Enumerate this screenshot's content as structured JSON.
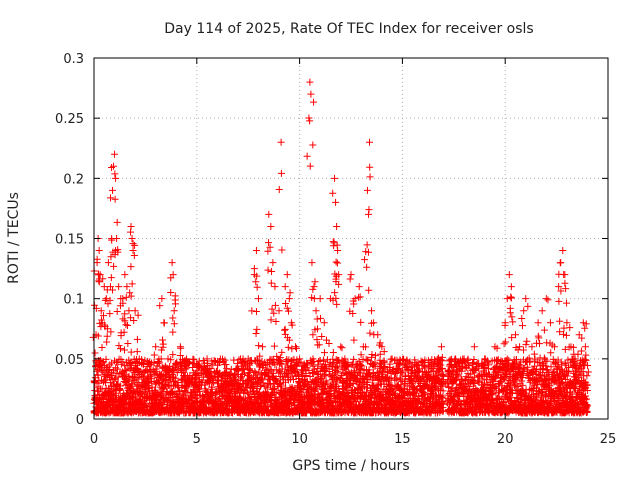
{
  "chart_data": {
    "type": "scatter",
    "title": "Day 114 of 2025, Rate Of TEC Index for receiver osls",
    "xlabel": "GPS time / hours",
    "ylabel": "ROTI / TECUs",
    "xlim": [
      0,
      25
    ],
    "ylim": [
      0,
      0.3
    ],
    "x_ticks": [
      0,
      5,
      10,
      15,
      20,
      25
    ],
    "x_tick_labels": [
      "0",
      "5",
      "10",
      "15",
      "20",
      "25"
    ],
    "y_ticks": [
      0,
      0.05,
      0.1,
      0.15,
      0.2,
      0.25,
      0.3
    ],
    "y_tick_labels": [
      "0",
      "0.05",
      "0.1",
      "0.15",
      "0.2",
      "0.25",
      "0.3"
    ],
    "grid": true,
    "marker": "+",
    "color": "#ff0000",
    "series": [
      {
        "name": "ROTI",
        "points": [
          [
            0.1,
            0.07
          ],
          [
            0.15,
            0.13
          ],
          [
            0.2,
            0.15
          ],
          [
            0.25,
            0.14
          ],
          [
            0.3,
            0.12
          ],
          [
            0.35,
            0.09
          ],
          [
            0.4,
            0.08
          ],
          [
            0.5,
            0.11
          ],
          [
            0.6,
            0.1
          ],
          [
            0.7,
            0.13
          ],
          [
            0.8,
            0.11
          ],
          [
            0.9,
            0.19
          ],
          [
            0.95,
            0.21
          ],
          [
            1.0,
            0.22
          ],
          [
            1.05,
            0.2
          ],
          [
            1.1,
            0.15
          ],
          [
            1.2,
            0.11
          ],
          [
            1.3,
            0.1
          ],
          [
            1.4,
            0.1
          ],
          [
            1.5,
            0.12
          ],
          [
            1.6,
            0.11
          ],
          [
            1.7,
            0.09
          ],
          [
            1.8,
            0.16
          ],
          [
            1.85,
            0.15
          ],
          [
            1.9,
            0.14
          ],
          [
            2.0,
            0.09
          ],
          [
            2.2,
            0.05
          ],
          [
            2.5,
            0.04
          ],
          [
            3.0,
            0.06
          ],
          [
            3.3,
            0.1
          ],
          [
            3.4,
            0.08
          ],
          [
            3.6,
            0.05
          ],
          [
            3.8,
            0.13
          ],
          [
            3.85,
            0.12
          ],
          [
            3.9,
            0.09
          ],
          [
            4.2,
            0.06
          ],
          [
            4.5,
            0.05
          ],
          [
            5.0,
            0.04
          ],
          [
            5.5,
            0.05
          ],
          [
            6.0,
            0.04
          ],
          [
            6.5,
            0.035
          ],
          [
            7.0,
            0.04
          ],
          [
            7.5,
            0.05
          ],
          [
            7.8,
            0.12
          ],
          [
            7.9,
            0.14
          ],
          [
            8.0,
            0.1
          ],
          [
            8.2,
            0.06
          ],
          [
            8.5,
            0.17
          ],
          [
            8.6,
            0.16
          ],
          [
            8.7,
            0.13
          ],
          [
            8.8,
            0.11
          ],
          [
            9.0,
            0.09
          ],
          [
            9.1,
            0.23
          ],
          [
            9.3,
            0.11
          ],
          [
            9.4,
            0.12
          ],
          [
            9.5,
            0.1
          ],
          [
            9.6,
            0.08
          ],
          [
            9.8,
            0.06
          ],
          [
            10.0,
            0.05
          ],
          [
            10.2,
            0.04
          ],
          [
            10.5,
            0.28
          ],
          [
            10.55,
            0.27
          ],
          [
            10.6,
            0.13
          ],
          [
            10.7,
            0.11
          ],
          [
            10.8,
            0.09
          ],
          [
            11.0,
            0.1
          ],
          [
            11.2,
            0.08
          ],
          [
            11.5,
            0.1
          ],
          [
            11.7,
            0.2
          ],
          [
            11.75,
            0.18
          ],
          [
            11.8,
            0.16
          ],
          [
            11.85,
            0.14
          ],
          [
            11.9,
            0.12
          ],
          [
            12.0,
            0.06
          ],
          [
            12.2,
            0.05
          ],
          [
            12.5,
            0.12
          ],
          [
            12.7,
            0.1
          ],
          [
            12.9,
            0.11
          ],
          [
            13.1,
            0.06
          ],
          [
            13.3,
            0.19
          ],
          [
            13.35,
            0.17
          ],
          [
            13.4,
            0.23
          ],
          [
            13.5,
            0.09
          ],
          [
            13.6,
            0.08
          ],
          [
            13.8,
            0.07
          ],
          [
            14.0,
            0.06
          ],
          [
            14.5,
            0.05
          ],
          [
            15.0,
            0.04
          ],
          [
            15.5,
            0.04
          ],
          [
            16.0,
            0.035
          ],
          [
            16.5,
            0.04
          ],
          [
            16.9,
            0.06
          ],
          [
            17.2,
            0.03
          ],
          [
            17.5,
            0.04
          ],
          [
            18.0,
            0.05
          ],
          [
            18.5,
            0.06
          ],
          [
            19.0,
            0.05
          ],
          [
            19.5,
            0.06
          ],
          [
            20.0,
            0.08
          ],
          [
            20.1,
            0.1
          ],
          [
            20.2,
            0.12
          ],
          [
            20.3,
            0.11
          ],
          [
            20.5,
            0.07
          ],
          [
            20.7,
            0.06
          ],
          [
            20.9,
            0.09
          ],
          [
            21.0,
            0.1
          ],
          [
            21.3,
            0.06
          ],
          [
            21.6,
            0.08
          ],
          [
            21.8,
            0.09
          ],
          [
            22.0,
            0.1
          ],
          [
            22.2,
            0.08
          ],
          [
            22.4,
            0.06
          ],
          [
            22.6,
            0.11
          ],
          [
            22.7,
            0.13
          ],
          [
            22.8,
            0.14
          ],
          [
            22.9,
            0.12
          ],
          [
            23.0,
            0.08
          ],
          [
            23.2,
            0.06
          ],
          [
            23.4,
            0.05
          ],
          [
            23.6,
            0.07
          ],
          [
            23.8,
            0.08
          ],
          [
            23.9,
            0.06
          ]
        ],
        "baseline_band": {
          "segments": [
            [
              0,
              17
            ],
            [
              17.2,
              24
            ]
          ],
          "typical_min": 0.005,
          "typical_max": 0.05
        }
      }
    ]
  }
}
